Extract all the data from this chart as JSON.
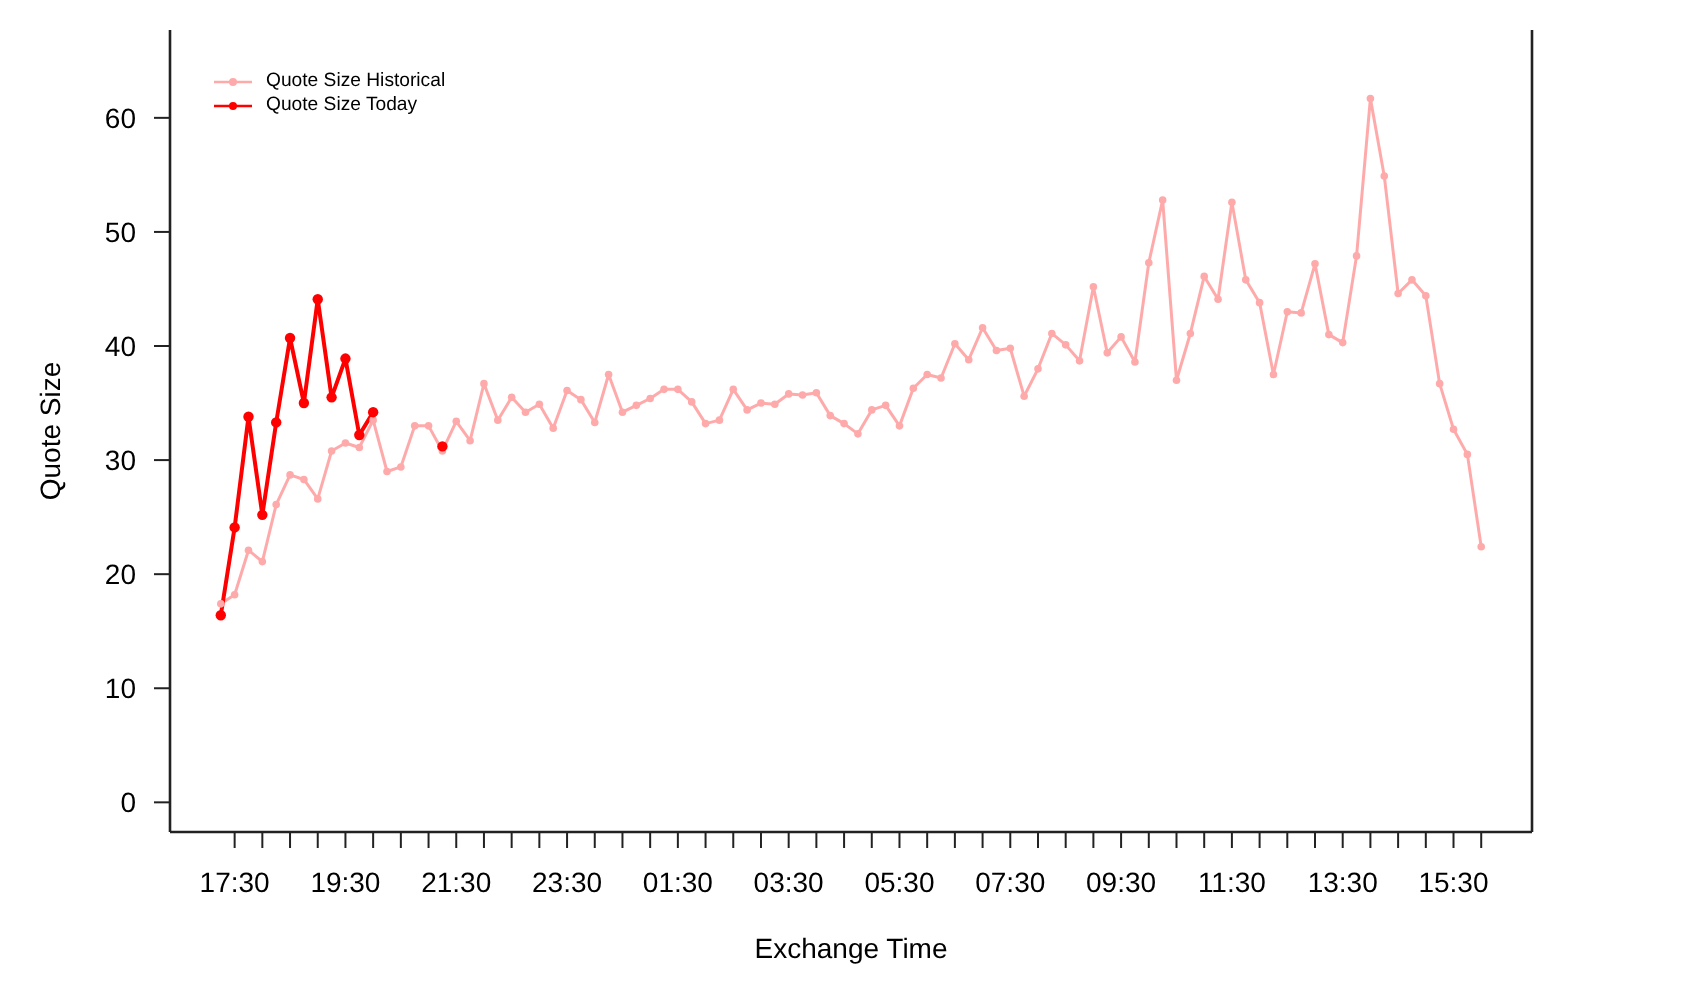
{
  "chart_data": {
    "type": "line",
    "xlabel": "Exchange Time",
    "ylabel": "Quote Size",
    "x": [
      "--01-01T17:15",
      "--01-01T17:30",
      "--01-01T17:45",
      "--01-01T18:00",
      "--01-01T18:15",
      "--01-01T18:30",
      "--01-01T18:45",
      "--01-01T19:00",
      "--01-01T19:15",
      "--01-01T19:30",
      "--01-01T19:45",
      "--01-01T20:00",
      "--01-01T20:15",
      "--01-01T20:30",
      "--01-01T20:45",
      "--01-01T21:00",
      "--01-01T21:15",
      "--01-01T21:30",
      "--01-01T21:45",
      "--01-01T22:00",
      "--01-01T22:15",
      "--01-01T22:30",
      "--01-01T22:45",
      "--01-01T23:00",
      "--01-01T23:15",
      "--01-01T23:30",
      "--01-01T23:45",
      "--01-02T00:00",
      "--01-02T00:15",
      "--01-02T00:30",
      "--01-02T00:45",
      "--01-02T01:00",
      "--01-02T01:15",
      "--01-02T01:30",
      "--01-02T01:45",
      "--01-02T02:00",
      "--01-02T02:15",
      "--01-02T02:30",
      "--01-02T02:45",
      "--01-02T03:00",
      "--01-02T03:15",
      "--01-02T03:30",
      "--01-02T03:45",
      "--01-02T04:00",
      "--01-02T04:15",
      "--01-02T04:30",
      "--01-02T04:45",
      "--01-02T05:00",
      "--01-02T05:15",
      "--01-02T05:30",
      "--01-02T05:45",
      "--01-02T06:00",
      "--01-02T06:15",
      "--01-02T06:30",
      "--01-02T06:45",
      "--01-02T07:00",
      "--01-02T07:15",
      "--01-02T07:30",
      "--01-02T07:45",
      "--01-02T08:00",
      "--01-02T08:15",
      "--01-02T08:30",
      "--01-02T08:45",
      "--01-02T09:00",
      "--01-02T09:15",
      "--01-02T09:30",
      "--01-02T09:45",
      "--01-02T10:00",
      "--01-02T10:15",
      "--01-02T10:30",
      "--01-02T10:45",
      "--01-02T11:00",
      "--01-02T11:15",
      "--01-02T11:30",
      "--01-02T11:45",
      "--01-02T12:00",
      "--01-02T12:15",
      "--01-02T12:30",
      "--01-02T12:45",
      "--01-02T13:00",
      "--01-02T13:15",
      "--01-02T13:30",
      "--01-02T13:45",
      "--01-02T14:00",
      "--01-02T14:15",
      "--01-02T14:30",
      "--01-02T14:45",
      "--01-02T15:00",
      "--01-02T15:15",
      "--01-02T15:30",
      "--01-02T15:45",
      "--01-02T16:00"
    ],
    "xlim": [
      "--01-01T16:20",
      "--01-02T16:55"
    ],
    "xticks": [
      {
        "value": "--01-01T17:30",
        "label": "17:30"
      },
      {
        "value": "--01-01T18:00",
        "label": null
      },
      {
        "value": "--01-01T18:30",
        "label": null
      },
      {
        "value": "--01-01T19:00",
        "label": null
      },
      {
        "value": "--01-01T19:30",
        "label": "19:30"
      },
      {
        "value": "--01-01T20:00",
        "label": null
      },
      {
        "value": "--01-01T20:30",
        "label": null
      },
      {
        "value": "--01-01T21:00",
        "label": null
      },
      {
        "value": "--01-01T21:30",
        "label": "21:30"
      },
      {
        "value": "--01-01T22:00",
        "label": null
      },
      {
        "value": "--01-01T22:30",
        "label": null
      },
      {
        "value": "--01-01T23:00",
        "label": null
      },
      {
        "value": "--01-01T23:30",
        "label": "23:30"
      },
      {
        "value": "--01-02T00:00",
        "label": null
      },
      {
        "value": "--01-02T00:30",
        "label": null
      },
      {
        "value": "--01-02T01:00",
        "label": null
      },
      {
        "value": "--01-02T01:30",
        "label": "01:30"
      },
      {
        "value": "--01-02T02:00",
        "label": null
      },
      {
        "value": "--01-02T02:30",
        "label": null
      },
      {
        "value": "--01-02T03:00",
        "label": null
      },
      {
        "value": "--01-02T03:30",
        "label": "03:30"
      },
      {
        "value": "--01-02T04:00",
        "label": null
      },
      {
        "value": "--01-02T04:30",
        "label": null
      },
      {
        "value": "--01-02T05:00",
        "label": null
      },
      {
        "value": "--01-02T05:30",
        "label": "05:30"
      },
      {
        "value": "--01-02T06:00",
        "label": null
      },
      {
        "value": "--01-02T06:30",
        "label": null
      },
      {
        "value": "--01-02T07:00",
        "label": null
      },
      {
        "value": "--01-02T07:30",
        "label": "07:30"
      },
      {
        "value": "--01-02T08:00",
        "label": null
      },
      {
        "value": "--01-02T08:30",
        "label": null
      },
      {
        "value": "--01-02T09:00",
        "label": null
      },
      {
        "value": "--01-02T09:30",
        "label": "09:30"
      },
      {
        "value": "--01-02T10:00",
        "label": null
      },
      {
        "value": "--01-02T10:30",
        "label": null
      },
      {
        "value": "--01-02T11:00",
        "label": null
      },
      {
        "value": "--01-02T11:30",
        "label": "11:30"
      },
      {
        "value": "--01-02T12:00",
        "label": null
      },
      {
        "value": "--01-02T12:30",
        "label": null
      },
      {
        "value": "--01-02T13:00",
        "label": null
      },
      {
        "value": "--01-02T13:30",
        "label": "13:30"
      },
      {
        "value": "--01-02T14:00",
        "label": null
      },
      {
        "value": "--01-02T14:30",
        "label": null
      },
      {
        "value": "--01-02T15:00",
        "label": null
      },
      {
        "value": "--01-02T15:30",
        "label": "15:30"
      },
      {
        "value": "--01-02T16:00",
        "label": null
      }
    ],
    "ylim": [
      -2.6,
      67.7
    ],
    "yticks": [
      0,
      10,
      20,
      30,
      40,
      50,
      60
    ],
    "legend": "top left",
    "marker": "circle",
    "line_style": "solid",
    "series": [
      {
        "name": "Quote Size Historical",
        "color": "#ffaaaa",
        "values": [
          17.4,
          18.2,
          22.1,
          21.1,
          26.1,
          28.7,
          28.3,
          26.6,
          30.8,
          31.5,
          31.1,
          33.5,
          29.0,
          29.4,
          33.0,
          33.0,
          30.8,
          33.4,
          31.7,
          36.7,
          33.5,
          35.5,
          34.2,
          34.9,
          32.8,
          36.1,
          35.3,
          33.3,
          37.5,
          34.2,
          34.8,
          35.4,
          36.2,
          36.2,
          35.1,
          33.2,
          33.5,
          36.2,
          34.4,
          35.0,
          34.9,
          35.8,
          35.7,
          35.9,
          33.9,
          33.2,
          32.3,
          34.4,
          34.8,
          33.0,
          36.3,
          37.5,
          37.2,
          40.2,
          38.8,
          41.6,
          39.6,
          39.8,
          35.6,
          38.0,
          41.1,
          40.1,
          38.7,
          45.2,
          39.4,
          40.8,
          38.6,
          47.3,
          52.8,
          37.0,
          41.1,
          46.1,
          44.1,
          52.6,
          45.8,
          43.8,
          37.5,
          43.0,
          42.9,
          47.2,
          41.0,
          40.3,
          47.9,
          61.7,
          54.9,
          44.6,
          45.8,
          44.4,
          36.7,
          32.7,
          30.5,
          22.4
        ]
      },
      {
        "name": "Quote Size Today",
        "color": "#ff0000",
        "values": [
          16.4,
          24.1,
          33.8,
          25.2,
          33.3,
          40.7,
          35.0,
          44.1,
          35.5,
          38.9,
          32.2,
          34.2,
          null,
          null,
          null,
          null,
          31.2,
          null,
          null,
          null,
          null,
          null,
          null,
          null,
          null,
          null,
          null,
          null,
          null,
          null,
          null,
          null,
          null,
          null,
          null,
          null,
          null,
          null,
          null,
          null,
          null,
          null,
          null,
          null,
          null,
          null,
          null,
          null,
          null,
          null,
          null,
          null,
          null,
          null,
          null,
          null,
          null,
          null,
          null,
          null,
          null,
          null,
          null,
          null,
          null,
          null,
          null,
          null,
          null,
          null,
          null,
          null,
          null,
          null,
          null,
          null,
          null,
          null,
          null,
          null,
          null,
          null,
          null,
          null,
          null,
          null,
          null,
          null,
          null,
          null,
          null,
          null
        ]
      }
    ]
  }
}
